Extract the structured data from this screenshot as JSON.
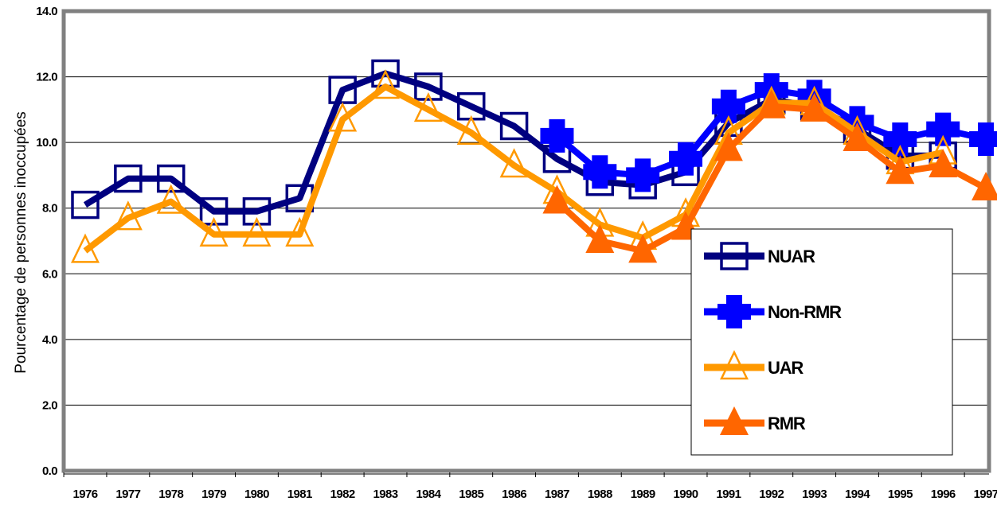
{
  "chart_data": {
    "type": "line",
    "ylabel": "Pourcentage de personnes inoccupées",
    "xlabel": "",
    "title": "",
    "ylim": [
      0,
      14
    ],
    "yticks": [
      "0.0",
      "2.0",
      "4.0",
      "6.0",
      "8.0",
      "10.0",
      "12.0",
      "14.0"
    ],
    "categories": [
      "1976",
      "1977",
      "1978",
      "1979",
      "1980",
      "1981",
      "1982",
      "1983",
      "1984",
      "1985",
      "1986",
      "1987",
      "1988",
      "1989",
      "1990",
      "1991",
      "1992",
      "1993",
      "1994",
      "1995",
      "1996",
      "1997"
    ],
    "grid": true,
    "legend_position": "bottom-right",
    "series": [
      {
        "name": "NUAR",
        "color": "#000080",
        "marker": "square-open",
        "values": [
          8.1,
          8.9,
          8.9,
          7.9,
          7.9,
          8.3,
          11.6,
          12.1,
          11.7,
          11.1,
          10.5,
          9.5,
          8.8,
          8.7,
          9.1,
          10.6,
          11.3,
          11.1,
          10.4,
          9.6,
          9.6,
          null
        ]
      },
      {
        "name": "Non-RMR",
        "color": "#0000ff",
        "marker": "square-filled",
        "values": [
          null,
          null,
          null,
          null,
          null,
          null,
          null,
          null,
          null,
          null,
          null,
          10.2,
          9.1,
          9.0,
          9.5,
          11.1,
          11.6,
          11.4,
          10.6,
          10.1,
          10.4,
          10.1
        ]
      },
      {
        "name": "UAR",
        "color": "#ff9900",
        "marker": "triangle-open",
        "values": [
          6.7,
          7.7,
          8.2,
          7.2,
          7.2,
          7.2,
          10.7,
          11.7,
          11.0,
          10.3,
          9.3,
          8.5,
          7.5,
          7.1,
          7.8,
          10.3,
          11.2,
          11.2,
          10.3,
          9.4,
          9.7,
          null
        ]
      },
      {
        "name": "RMR",
        "color": "#ff6600",
        "marker": "triangle-filled",
        "values": [
          null,
          null,
          null,
          null,
          null,
          null,
          null,
          null,
          null,
          null,
          null,
          8.2,
          7.0,
          6.7,
          7.4,
          9.8,
          11.1,
          11.0,
          10.1,
          9.1,
          9.3,
          8.6
        ]
      }
    ]
  }
}
